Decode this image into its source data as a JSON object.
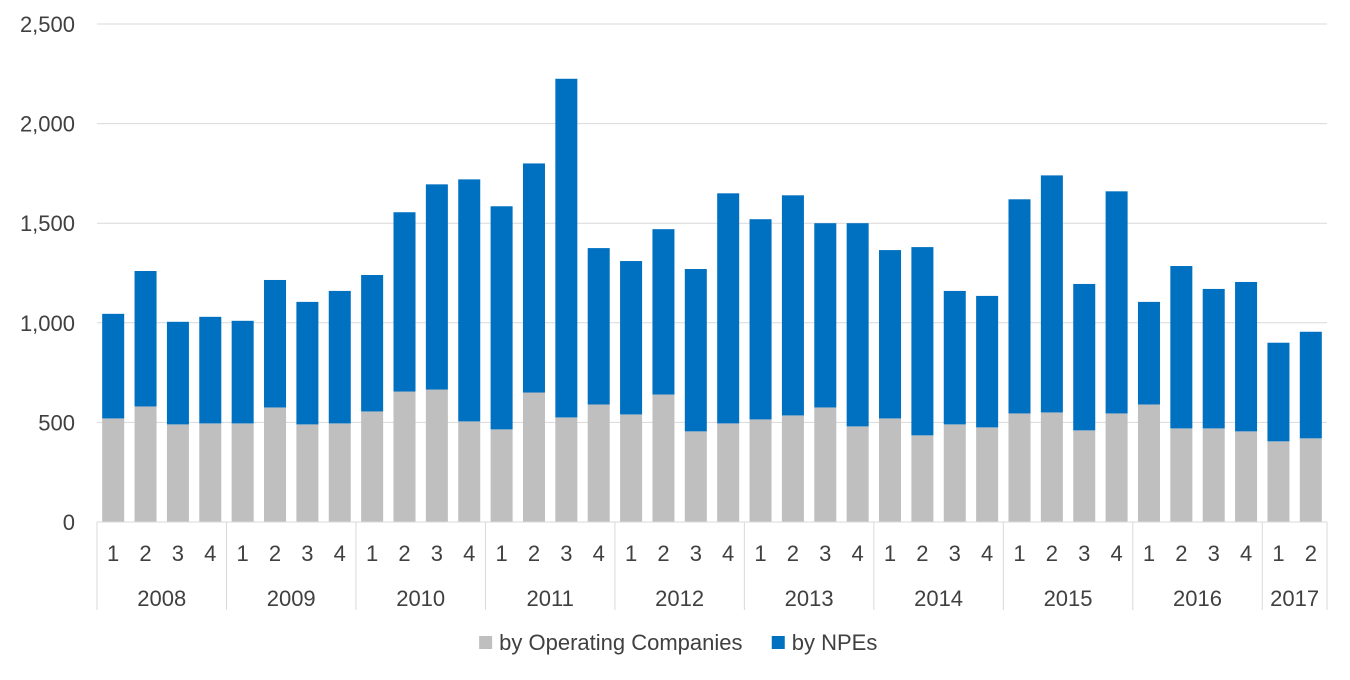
{
  "chart_data": {
    "type": "bar",
    "stacked": true,
    "title": "",
    "xlabel": "",
    "ylabel": "",
    "ylim": [
      0,
      2500
    ],
    "yticks": [
      0,
      500,
      1000,
      1500,
      2000,
      2500
    ],
    "ytick_labels": [
      "0",
      "500",
      "1,000",
      "1,500",
      "2,000",
      "2,500"
    ],
    "grid": true,
    "legend_position": "bottom",
    "categories": [
      "1",
      "2",
      "3",
      "4",
      "1",
      "2",
      "3",
      "4",
      "1",
      "2",
      "3",
      "4",
      "1",
      "2",
      "3",
      "4",
      "1",
      "2",
      "3",
      "4",
      "1",
      "2",
      "3",
      "4",
      "1",
      "2",
      "3",
      "4",
      "1",
      "2",
      "3",
      "4",
      "1",
      "2",
      "3",
      "4",
      "1",
      "2"
    ],
    "year_groups": [
      {
        "label": "2008",
        "count": 4
      },
      {
        "label": "2009",
        "count": 4
      },
      {
        "label": "2010",
        "count": 4
      },
      {
        "label": "2011",
        "count": 4
      },
      {
        "label": "2012",
        "count": 4
      },
      {
        "label": "2013",
        "count": 4
      },
      {
        "label": "2014",
        "count": 4
      },
      {
        "label": "2015",
        "count": 4
      },
      {
        "label": "2016",
        "count": 4
      },
      {
        "label": "2017",
        "count": 2
      }
    ],
    "series": [
      {
        "name": "by Operating Companies",
        "color": "#bfbfbf",
        "values": [
          520,
          580,
          490,
          495,
          495,
          575,
          490,
          495,
          555,
          655,
          665,
          505,
          465,
          650,
          525,
          590,
          540,
          640,
          455,
          495,
          515,
          535,
          575,
          480,
          520,
          435,
          490,
          475,
          545,
          550,
          460,
          545,
          590,
          470,
          470,
          455,
          405,
          420
        ]
      },
      {
        "name": "by NPEs",
        "color": "#0070c0",
        "values": [
          525,
          680,
          515,
          535,
          515,
          640,
          615,
          665,
          685,
          900,
          1030,
          1215,
          1120,
          1150,
          1700,
          785,
          770,
          830,
          815,
          1155,
          1005,
          1105,
          925,
          1020,
          845,
          945,
          670,
          660,
          1075,
          1190,
          735,
          1115,
          515,
          815,
          700,
          750,
          495,
          535
        ]
      }
    ]
  }
}
